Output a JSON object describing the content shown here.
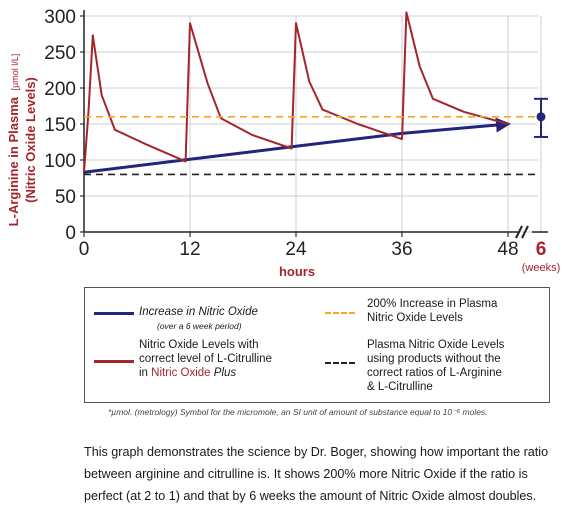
{
  "chart_data": {
    "type": "line",
    "ylabel": "L-Arginine in Plasma",
    "ylabel_unit": "[µmol l/L]",
    "ylabel2": "(Nitric Oxide Levels)",
    "xlabel": "hours",
    "ylim": [
      0,
      300
    ],
    "yticks": [
      "0",
      "50",
      "100",
      "150",
      "200",
      "250",
      "300"
    ],
    "xlim": [
      0,
      48
    ],
    "xticks": [
      "0",
      "12",
      "24",
      "36",
      "48"
    ],
    "x_break_tick": "6",
    "x_break_unit": "(weeks)",
    "grid": true,
    "series": [
      {
        "name": "Increase in Nitric Oxide",
        "subtitle": "(over a 6 week period)",
        "color": "#23257a",
        "points": [
          [
            0,
            83
          ],
          [
            12,
            101
          ],
          [
            24,
            119
          ],
          [
            36,
            137
          ],
          [
            48,
            150
          ]
        ]
      },
      {
        "name": "Nitric Oxide Levels with correct level of L-Citrulline in Nitric Oxide Plus",
        "color": "#a4262c",
        "points": [
          [
            0,
            83
          ],
          [
            0.5,
            165
          ],
          [
            1,
            273
          ],
          [
            2,
            190
          ],
          [
            3.5,
            142
          ],
          [
            7,
            122
          ],
          [
            11.5,
            98
          ],
          [
            12,
            290
          ],
          [
            14,
            206
          ],
          [
            15.5,
            158
          ],
          [
            19,
            135
          ],
          [
            23.5,
            116
          ],
          [
            24,
            290
          ],
          [
            25.5,
            209
          ],
          [
            27,
            170
          ],
          [
            31,
            150
          ],
          [
            36,
            129
          ],
          [
            36.5,
            305
          ],
          [
            38,
            230
          ],
          [
            39.5,
            185
          ],
          [
            43,
            167
          ],
          [
            48,
            150
          ]
        ]
      },
      {
        "name": "200% Increase in Plasma Nitric Oxide Levels",
        "color": "#f5a623",
        "style": "dashed",
        "value": 160
      },
      {
        "name": "Plasma Nitric Oxide Levels using products without the correct ratios of L-Arginine & L-Citrulline",
        "color": "#222222",
        "style": "dashed",
        "value": 80
      }
    ],
    "week6_point": {
      "value": 160,
      "error_low": 132,
      "error_high": 185,
      "color": "#23257a"
    }
  },
  "legend": {
    "item1_label": "Increase in Nitric Oxide",
    "item1_sub": "(over a 6 week period)",
    "item2_line1": "200% Increase in Plasma",
    "item2_line2": "Nitric Oxide Levels",
    "item3_line1": "Nitric Oxide Levels with",
    "item3_line2": "correct level of L-Citrulline",
    "item3_line3_prefix": "in ",
    "item3_line3_red": "Nitric Oxide",
    "item3_line3_italic": " Plus",
    "item4_line1": "Plasma Nitric Oxide Levels",
    "item4_line2": "using products without the",
    "item4_line3": "correct ratios of L-Arginine",
    "item4_line4": "& L-Citrulline"
  },
  "footnote": "*µmol. (metrology) Symbol for the micromole, an SI unit of amount of substance equal to 10⁻⁶ moles.",
  "description": "This graph demonstrates the science by Dr. Boger, showing how important the ratio between arginine and citrulline is. It shows 200% more Nitric Oxide if the ratio is perfect (at 2 to 1) and that by 6 weeks the amount of Nitric Oxide almost doubles."
}
